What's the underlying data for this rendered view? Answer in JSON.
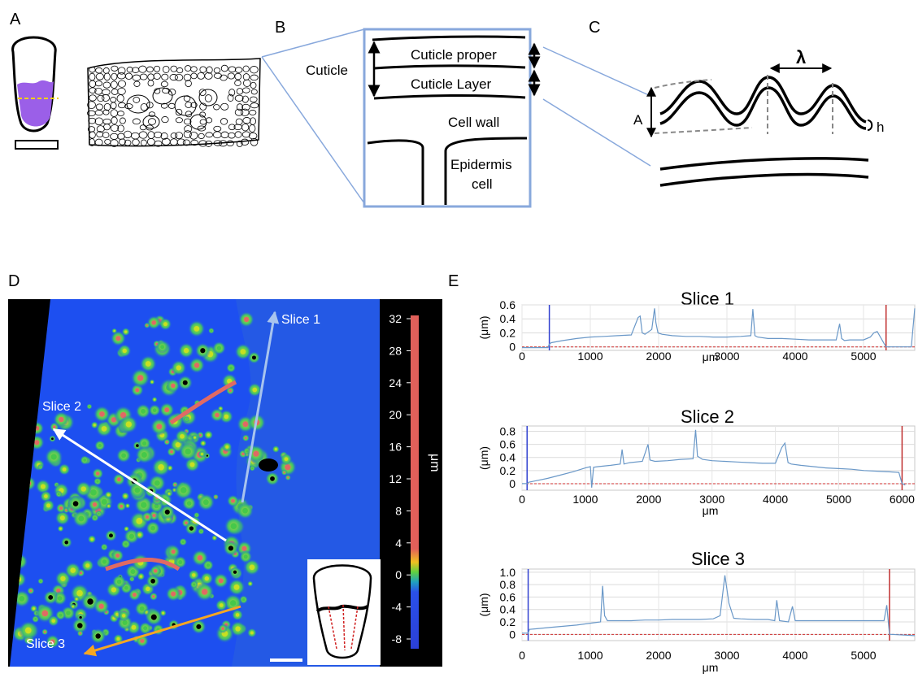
{
  "panels": {
    "a": "A",
    "b": "B",
    "c": "C",
    "d": "D",
    "e": "E"
  },
  "diagram_b": {
    "cuticle": "Cuticle",
    "cuticle_proper": "Cuticle proper",
    "cuticle_layer": "Cuticle Layer",
    "cell_wall": "Cell wall",
    "epidermis_line1": "Epidermis",
    "epidermis_line2": "cell"
  },
  "diagram_c": {
    "lambda": "λ",
    "amplitude": "A",
    "height": "h"
  },
  "map_d": {
    "slice1": "Slice 1",
    "slice2": "Slice 2",
    "slice3": "Slice 3",
    "colorbar_unit": "μm",
    "colorbar_ticks": [
      "32",
      "28",
      "24",
      "20",
      "16",
      "12",
      "8",
      "4",
      "0",
      "-4",
      "-8"
    ],
    "colors": {
      "background": "#1d4ff0",
      "bar_top": "#e0605a",
      "bar_bottom": "#2b40d8"
    }
  },
  "chart_data": [
    {
      "type": "line",
      "title": "Slice 1",
      "xlabel": "μm",
      "ylabel": "(μm)",
      "xticks": [
        0,
        1000,
        2000,
        3000,
        4000,
        5000
      ],
      "yticks": [
        "0",
        "0.2",
        "0.4",
        "0.6"
      ],
      "xlim": [
        0,
        5750
      ],
      "ylim": [
        -0.05,
        0.6
      ],
      "markers": {
        "blue_x": 400,
        "red_x": 5330
      },
      "series": [
        {
          "x": [
            0,
            380,
            400,
            430,
            600,
            800,
            1000,
            1200,
            1400,
            1600,
            1700,
            1730,
            1760,
            1800,
            1900,
            1940,
            1960,
            1990,
            2050,
            2200,
            2400,
            2600,
            2800,
            3000,
            3200,
            3350,
            3380,
            3410,
            3450,
            3600,
            3800,
            4000,
            4200,
            4400,
            4600,
            4650,
            4680,
            4720,
            4800,
            5000,
            5100,
            5150,
            5200,
            5260,
            5300,
            5330,
            5700,
            5750
          ],
          "y": [
            -0.01,
            -0.01,
            0.04,
            0.06,
            0.09,
            0.12,
            0.14,
            0.15,
            0.16,
            0.17,
            0.42,
            0.44,
            0.2,
            0.18,
            0.25,
            0.55,
            0.35,
            0.2,
            0.18,
            0.16,
            0.15,
            0.15,
            0.14,
            0.14,
            0.15,
            0.16,
            0.54,
            0.16,
            0.14,
            0.12,
            0.12,
            0.11,
            0.1,
            0.1,
            0.1,
            0.33,
            0.12,
            0.09,
            0.1,
            0.1,
            0.14,
            0.2,
            0.22,
            0.12,
            0.05,
            0.0,
            0.0,
            0.55
          ]
        }
      ]
    },
    {
      "type": "line",
      "title": "Slice 2",
      "xlabel": "μm",
      "ylabel": "(μm)",
      "xticks": [
        0,
        1000,
        2000,
        3000,
        4000,
        5000,
        6000
      ],
      "yticks": [
        "0",
        "0.2",
        "0.4",
        "0.6",
        "0.8"
      ],
      "xlim": [
        0,
        6200
      ],
      "ylim": [
        -0.1,
        0.88
      ],
      "markers": {
        "blue_x": 80,
        "red_x": 6000
      },
      "series": [
        {
          "x": [
            0,
            80,
            100,
            200,
            400,
            600,
            800,
            1000,
            1080,
            1100,
            1130,
            1200,
            1400,
            1550,
            1580,
            1610,
            1700,
            1900,
            1990,
            2020,
            2100,
            2300,
            2500,
            2700,
            2740,
            2770,
            2850,
            3000,
            3200,
            3400,
            3600,
            3800,
            4000,
            4100,
            4150,
            4200,
            4250,
            4400,
            4600,
            4800,
            5000,
            5200,
            5400,
            5600,
            5800,
            5950,
            6000,
            6050
          ],
          "y": [
            0.0,
            0.0,
            0.02,
            0.04,
            0.08,
            0.13,
            0.18,
            0.24,
            0.26,
            -0.06,
            0.25,
            0.26,
            0.28,
            0.3,
            0.52,
            0.3,
            0.32,
            0.34,
            0.6,
            0.36,
            0.34,
            0.35,
            0.37,
            0.38,
            0.82,
            0.42,
            0.37,
            0.35,
            0.34,
            0.33,
            0.32,
            0.31,
            0.31,
            0.55,
            0.62,
            0.32,
            0.3,
            0.28,
            0.26,
            0.24,
            0.23,
            0.22,
            0.2,
            0.19,
            0.18,
            0.17,
            0.0,
            -0.02
          ]
        }
      ]
    },
    {
      "type": "line",
      "title": "Slice 3",
      "xlabel": "μm",
      "ylabel": "(μm)",
      "xticks": [
        0,
        1000,
        2000,
        3000,
        4000,
        5000
      ],
      "yticks": [
        "0",
        "0.2",
        "0.4",
        "0.6",
        "0.8",
        "1.0"
      ],
      "xlim": [
        0,
        5750
      ],
      "ylim": [
        -0.1,
        1.05
      ],
      "markers": {
        "blue_x": 90,
        "red_x": 5380
      },
      "series": [
        {
          "x": [
            0,
            90,
            110,
            200,
            400,
            600,
            800,
            1000,
            1150,
            1180,
            1210,
            1250,
            1400,
            1600,
            1800,
            2000,
            2200,
            2400,
            2600,
            2800,
            2900,
            2970,
            3030,
            3100,
            3200,
            3400,
            3600,
            3700,
            3730,
            3770,
            3900,
            3960,
            4000,
            4200,
            4400,
            4600,
            4800,
            5000,
            5200,
            5300,
            5340,
            5380,
            5400,
            5750
          ],
          "y": [
            0.02,
            0.02,
            0.08,
            0.09,
            0.11,
            0.13,
            0.15,
            0.18,
            0.2,
            0.78,
            0.3,
            0.22,
            0.22,
            0.22,
            0.23,
            0.23,
            0.24,
            0.24,
            0.24,
            0.25,
            0.3,
            0.95,
            0.5,
            0.26,
            0.25,
            0.24,
            0.24,
            0.22,
            0.55,
            0.22,
            0.2,
            0.45,
            0.22,
            0.22,
            0.22,
            0.22,
            0.22,
            0.22,
            0.22,
            0.22,
            0.47,
            0.0,
            0.0,
            -0.02
          ]
        }
      ]
    }
  ]
}
